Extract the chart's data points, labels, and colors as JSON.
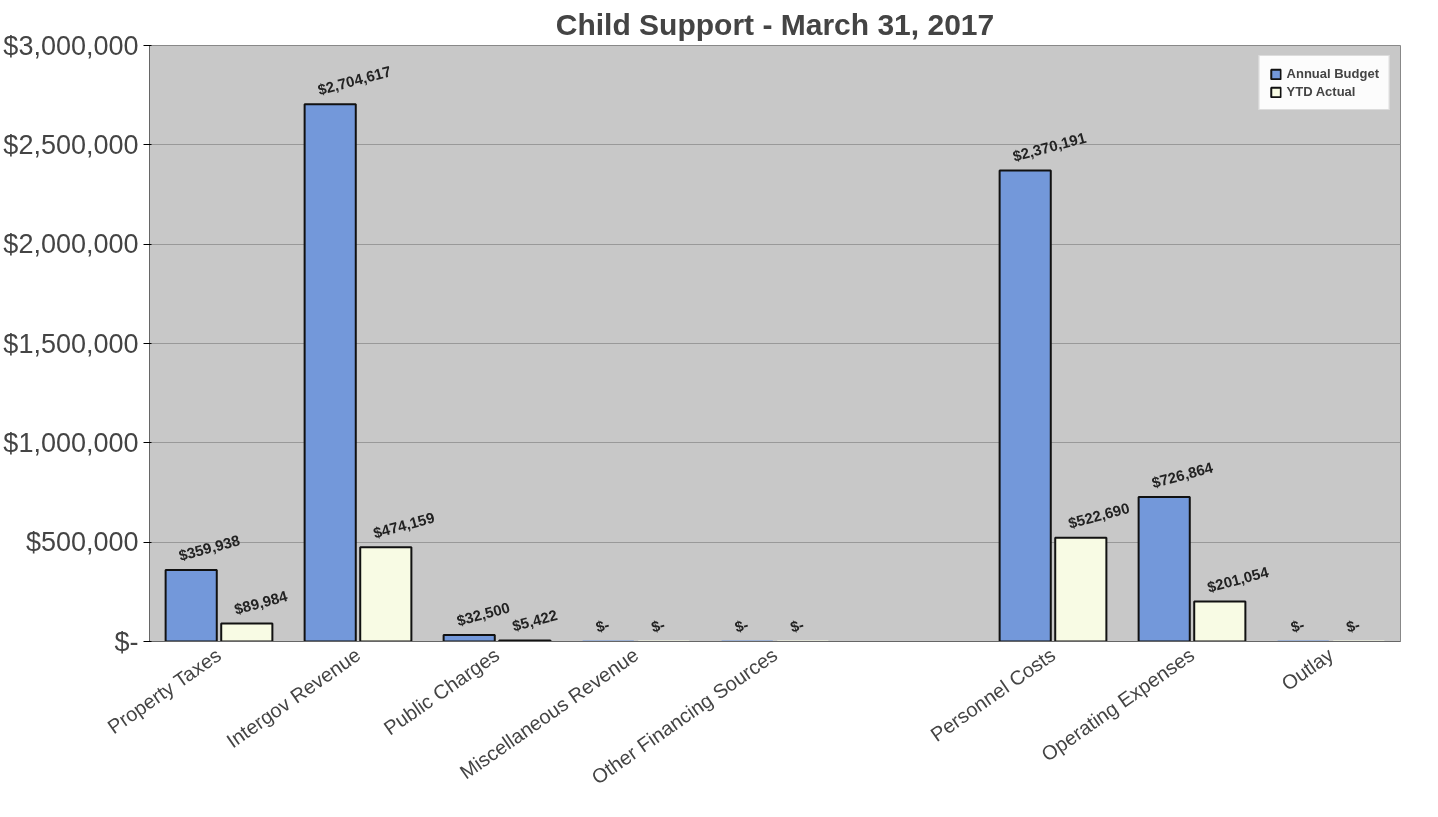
{
  "chart_data": {
    "type": "bar",
    "title": "Child Support - March 31, 2017",
    "categories": [
      "Property Taxes",
      "Intergov Revenue",
      "Public Charges",
      "Miscellaneous Revenue",
      "Other Financing Sources",
      null,
      "Personnel Costs",
      "Operating Expenses",
      "Outlay"
    ],
    "series": [
      {
        "name": "Annual Budget",
        "color": "#7398da",
        "values": [
          359938,
          2704617,
          32500,
          0,
          0,
          null,
          2370191,
          726864,
          0
        ],
        "value_labels": [
          "$359,938",
          "$2,704,617",
          "$32,500",
          "$-",
          "$-",
          null,
          "$2,370,191",
          "$726,864",
          "$-"
        ]
      },
      {
        "name": "YTD Actual",
        "color": "#f8fbe4",
        "values": [
          89984,
          474159,
          5422,
          0,
          0,
          null,
          522690,
          201054,
          0
        ],
        "value_labels": [
          "$89,984",
          "$474,159",
          "$5,422",
          "$-",
          "$-",
          null,
          "$522,690",
          "$201,054",
          "$-"
        ]
      }
    ],
    "ylim": [
      0,
      3000000
    ],
    "yticks": [
      {
        "value": 0,
        "label": "$-"
      },
      {
        "value": 500000,
        "label": "$500,000"
      },
      {
        "value": 1000000,
        "label": "$1,000,000"
      },
      {
        "value": 1500000,
        "label": "$1,500,000"
      },
      {
        "value": 2000000,
        "label": "$2,000,000"
      },
      {
        "value": 2500000,
        "label": "$2,500,000"
      },
      {
        "value": 3000000,
        "label": "$3,000,000"
      }
    ],
    "grid": "y",
    "legend": "top right"
  }
}
